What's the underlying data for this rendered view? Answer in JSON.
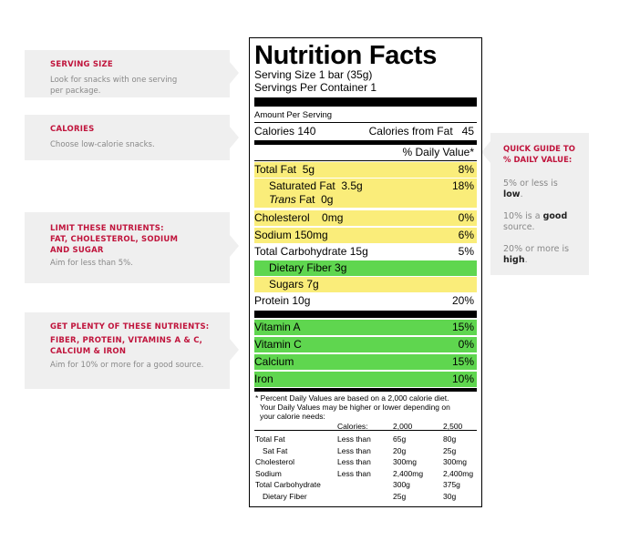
{
  "callouts": {
    "serving": {
      "title": "SERVING SIZE",
      "text_line1": "Look for snacks with one serving",
      "text_line2": "per package."
    },
    "calories": {
      "title": "CALORIES",
      "text": "Choose low-calorie snacks."
    },
    "limit": {
      "title_line1": "LIMIT THESE NUTRIENTS:",
      "title_line2": "FAT, CHOLESTEROL, SODIUM",
      "title_line3": "AND SUGAR",
      "text": "Aim for less than 5%."
    },
    "plenty": {
      "title_line1": "GET PLENTY OF THESE NUTRIENTS:",
      "title_line2": "FIBER, PROTEIN, VITAMINS A & C,",
      "title_line3": "CALCIUM & IRON",
      "text": "Aim for 10% or more for a good source."
    }
  },
  "guide": {
    "title_line1": "QUICK GUIDE TO",
    "title_line2": "% DAILY VALUE:",
    "low_pre": "5% or less is",
    "low_word": "low",
    "low_post": ".",
    "good_pre": "10% is a",
    "good_word": "good",
    "good_post": "source.",
    "high_pre": "20% or more is",
    "high_word": "high",
    "high_post": "."
  },
  "label": {
    "title": "Nutrition Facts",
    "serving_size": "Serving Size 1 bar (35g)",
    "servings_per_container": "Servings Per Container 1",
    "amount_per_serving": "Amount Per Serving",
    "calories": "Calories 140",
    "calories_from_fat": "Calories from Fat   45",
    "daily_value_header": "% Daily Value*",
    "rows": {
      "total_fat": {
        "label": "Total Fat  5g",
        "dv": "8%"
      },
      "saturated_fat": {
        "label": "Saturated Fat  3.5g",
        "dv": "18%"
      },
      "trans_fat_italic": "Trans",
      "trans_fat": " Fat  0g",
      "cholesterol": {
        "label": "Cholesterol    0mg",
        "dv": "0%"
      },
      "sodium": {
        "label": "Sodium 150mg",
        "dv": "6%"
      },
      "total_carb": {
        "label": "Total Carbohydrate 15g",
        "dv": "5%"
      },
      "fiber": {
        "label": "Dietary Fiber 3g"
      },
      "sugars": {
        "label": "Sugars 7g"
      },
      "protein": {
        "label": "Protein 10g",
        "dv": "20%"
      },
      "vitamin_a": {
        "label": "Vitamin A",
        "dv": "15%"
      },
      "vitamin_c": {
        "label": "Vitamin C",
        "dv": "0%"
      },
      "calcium": {
        "label": "Calcium",
        "dv": "15%"
      },
      "iron": {
        "label": "Iron",
        "dv": "10%"
      }
    },
    "footnote_line1": "* Percent Daily Values are based on a 2,000 calorie diet.",
    "footnote_line2": "Your Daily Values may be higher or lower depending on",
    "footnote_line3": "your calorie needs:",
    "table": {
      "header": {
        "calories_label": "Calories:",
        "c1": "2,000",
        "c2": "2,500"
      },
      "rows": [
        {
          "name": "Total Fat",
          "cond": "Less than",
          "v1": "65g",
          "v2": "80g"
        },
        {
          "name": "Sat Fat",
          "cond": "Less than",
          "v1": "20g",
          "v2": "25g"
        },
        {
          "name": "Cholesterol",
          "cond": "Less than",
          "v1": "300mg",
          "v2": "300mg"
        },
        {
          "name": "Sodium",
          "cond": "Less than",
          "v1": "2,400mg",
          "v2": "2,400mg"
        },
        {
          "name": "Total Carbohydrate",
          "cond": "",
          "v1": "300g",
          "v2": "375g"
        },
        {
          "name": "Dietary Fiber",
          "cond": "",
          "v1": "25g",
          "v2": "30g"
        }
      ]
    }
  },
  "colors": {
    "accent": "#c0143c",
    "limit": "#faed7a",
    "plenty": "#5fd64f",
    "callout_bg": "#efefef"
  }
}
